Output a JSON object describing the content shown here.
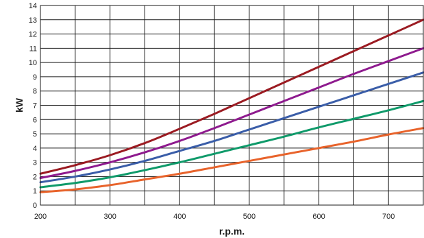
{
  "chart_data": {
    "type": "line",
    "xlabel": "r.p.m.",
    "ylabel": "kW",
    "xlim": [
      200,
      750
    ],
    "ylim": [
      0,
      14
    ],
    "x_ticks": [
      "200",
      "300",
      "400",
      "500",
      "600",
      "700"
    ],
    "y_ticks": [
      "0",
      "1",
      "2",
      "3",
      "4",
      "5",
      "6",
      "7",
      "8",
      "9",
      "10",
      "11",
      "12",
      "13",
      "14"
    ],
    "grid": true,
    "legend": "none",
    "series": [
      {
        "color": "#9b1b22",
        "x": [
          200,
          250,
          300,
          350,
          400,
          450,
          500,
          550,
          600,
          650,
          700,
          750
        ],
        "y": [
          2.2,
          2.8,
          3.5,
          4.35,
          5.35,
          6.4,
          7.5,
          8.6,
          9.7,
          10.8,
          11.9,
          13.0
        ]
      },
      {
        "color": "#8e1a8e",
        "x": [
          200,
          250,
          300,
          350,
          400,
          450,
          500,
          550,
          600,
          650,
          700,
          750
        ],
        "y": [
          1.9,
          2.4,
          3.0,
          3.7,
          4.5,
          5.4,
          6.35,
          7.3,
          8.25,
          9.2,
          10.1,
          11.0
        ]
      },
      {
        "color": "#3a5da8",
        "x": [
          200,
          250,
          300,
          350,
          400,
          450,
          500,
          550,
          600,
          650,
          700,
          750
        ],
        "y": [
          1.6,
          2.0,
          2.5,
          3.1,
          3.8,
          4.5,
          5.3,
          6.1,
          6.9,
          7.7,
          8.5,
          9.3
        ]
      },
      {
        "color": "#0f9a6a",
        "x": [
          200,
          250,
          300,
          350,
          400,
          450,
          500,
          550,
          600,
          650,
          700,
          750
        ],
        "y": [
          1.25,
          1.55,
          1.95,
          2.45,
          3.0,
          3.6,
          4.2,
          4.8,
          5.45,
          6.05,
          6.65,
          7.3
        ]
      },
      {
        "color": "#e8632b",
        "x": [
          200,
          250,
          300,
          350,
          400,
          450,
          500,
          550,
          600,
          650,
          700,
          750
        ],
        "y": [
          0.9,
          1.1,
          1.4,
          1.8,
          2.2,
          2.65,
          3.1,
          3.55,
          4.0,
          4.45,
          4.95,
          5.4
        ]
      }
    ]
  }
}
